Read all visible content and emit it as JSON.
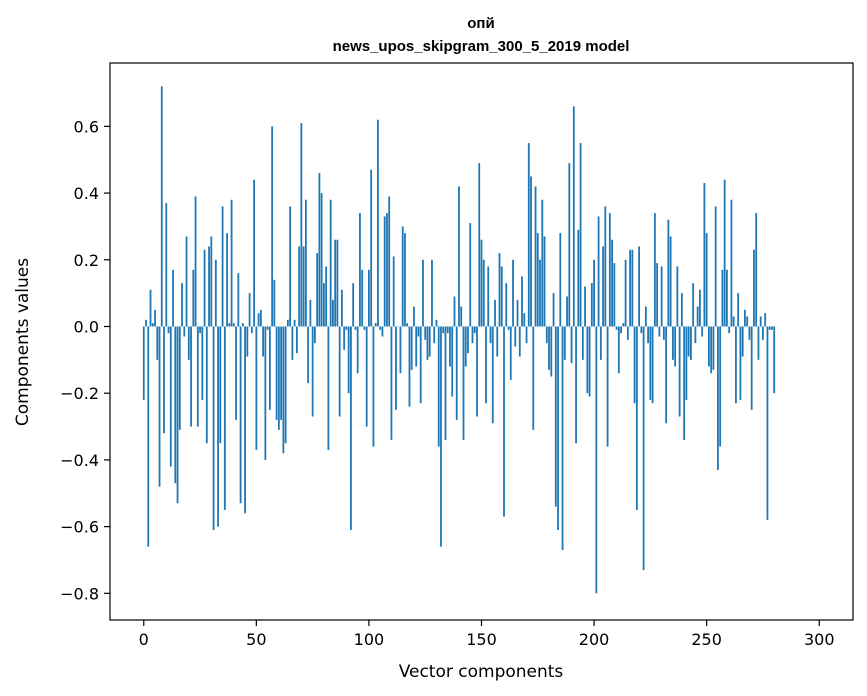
{
  "chart_data": {
    "type": "bar",
    "title": "опй",
    "subtitle": "news_upos_skipgram_300_5_2019 model",
    "xlabel": "Vector components",
    "ylabel": "Components values",
    "xlim": [
      -15,
      315
    ],
    "ylim": [
      -0.88,
      0.79
    ],
    "x_ticks": [
      0,
      50,
      100,
      150,
      200,
      250,
      300
    ],
    "y_ticks": [
      -0.8,
      -0.6,
      -0.4,
      -0.2,
      0.0,
      0.2,
      0.4,
      0.6
    ],
    "x_tick_labels": [
      "0",
      "50",
      "100",
      "150",
      "200",
      "250",
      "300"
    ],
    "y_tick_labels": [
      "−0.8",
      "−0.6",
      "−0.4",
      "−0.2",
      "0.0",
      "0.2",
      "0.4",
      "0.6"
    ],
    "grid": false,
    "bar_color": "#1f77b4",
    "values": [
      -0.22,
      0.02,
      -0.66,
      0.11,
      0.01,
      0.05,
      -0.1,
      -0.48,
      0.72,
      -0.32,
      0.37,
      -0.02,
      -0.42,
      0.17,
      -0.47,
      -0.53,
      -0.31,
      0.13,
      -0.03,
      0.27,
      -0.1,
      -0.3,
      0.17,
      0.39,
      -0.3,
      -0.02,
      -0.22,
      0.23,
      -0.35,
      0.24,
      0.27,
      -0.61,
      0.2,
      -0.6,
      -0.35,
      0.36,
      -0.55,
      0.28,
      0.01,
      0.38,
      0.01,
      -0.28,
      0.16,
      -0.53,
      0.01,
      -0.56,
      -0.09,
      0.1,
      -0.02,
      0.44,
      -0.37,
      0.04,
      0.05,
      -0.09,
      -0.4,
      -0.01,
      -0.25,
      0.6,
      0.14,
      -0.28,
      -0.31,
      -0.28,
      -0.38,
      -0.35,
      0.02,
      0.36,
      -0.1,
      0.02,
      -0.08,
      0.24,
      0.61,
      0.24,
      0.38,
      -0.17,
      0.08,
      -0.27,
      -0.05,
      0.22,
      0.46,
      0.4,
      0.13,
      0.18,
      -0.37,
      0.38,
      0.08,
      0.26,
      0.26,
      -0.27,
      0.11,
      -0.07,
      -0.01,
      -0.2,
      -0.61,
      0.13,
      -0.01,
      -0.14,
      0.34,
      0.17,
      -0.01,
      -0.3,
      0.17,
      0.47,
      -0.36,
      0.01,
      0.62,
      -0.01,
      -0.03,
      0.33,
      0.34,
      0.39,
      -0.34,
      0.21,
      -0.25,
      0.0,
      -0.14,
      0.3,
      0.28,
      0.01,
      -0.24,
      -0.13,
      0.06,
      -0.12,
      -0.03,
      -0.23,
      0.2,
      -0.04,
      -0.1,
      -0.09,
      0.2,
      -0.05,
      0.02,
      -0.36,
      -0.66,
      -0.02,
      -0.34,
      -0.02,
      -0.12,
      -0.21,
      0.09,
      -0.28,
      0.42,
      0.06,
      -0.34,
      -0.12,
      -0.08,
      0.31,
      -0.05,
      -0.02,
      -0.27,
      0.49,
      0.26,
      0.2,
      -0.23,
      0.18,
      -0.05,
      -0.29,
      0.08,
      -0.09,
      0.22,
      0.18,
      -0.57,
      0.13,
      -0.01,
      -0.16,
      0.2,
      -0.06,
      0.08,
      -0.09,
      0.15,
      0.04,
      -0.05,
      0.55,
      0.45,
      -0.31,
      0.42,
      0.28,
      0.2,
      0.38,
      0.27,
      -0.05,
      -0.13,
      -0.15,
      0.1,
      -0.54,
      -0.61,
      0.28,
      -0.67,
      -0.1,
      0.09,
      0.49,
      -0.11,
      0.66,
      -0.35,
      0.29,
      0.55,
      -0.1,
      0.12,
      -0.2,
      -0.21,
      0.13,
      0.2,
      -0.8,
      0.33,
      -0.1,
      0.24,
      0.36,
      -0.36,
      0.34,
      0.26,
      0.19,
      -0.01,
      -0.14,
      -0.02,
      0.01,
      0.2,
      -0.04,
      0.23,
      0.23,
      -0.23,
      -0.55,
      0.24,
      -0.02,
      -0.73,
      0.06,
      -0.05,
      -0.22,
      -0.23,
      0.34,
      0.19,
      -0.03,
      0.18,
      -0.04,
      -0.29,
      0.32,
      0.27,
      -0.1,
      -0.12,
      0.18,
      -0.27,
      0.1,
      -0.34,
      -0.22,
      -0.09,
      -0.1,
      0.13,
      -0.05,
      0.06,
      0.11,
      -0.03,
      0.43,
      0.28,
      -0.12,
      -0.14,
      -0.13,
      0.36,
      -0.43,
      -0.36,
      0.17,
      0.44,
      0.17,
      -0.02,
      0.38,
      0.03,
      -0.23,
      0.1,
      -0.22,
      -0.09,
      0.05,
      0.03,
      -0.04,
      -0.25,
      0.23,
      0.34,
      -0.1,
      0.03,
      -0.04,
      0.04,
      -0.58,
      -0.01,
      -0.01,
      -0.2
    ]
  }
}
